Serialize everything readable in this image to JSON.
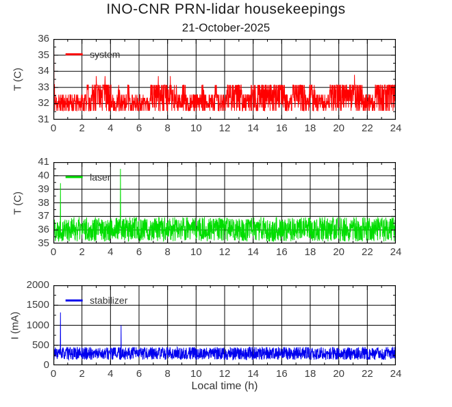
{
  "title": "INO-CNR PRN-lidar housekeepings",
  "subtitle": "21-October-2025",
  "xlabel": "Local time (h)",
  "chart_data": [
    {
      "type": "line",
      "series_name": "system",
      "legend_label": "system",
      "color": "#ff0000",
      "ylabel": "T (C)",
      "ylim": [
        31,
        36
      ],
      "yticks": [
        31,
        32,
        33,
        34,
        35,
        36
      ],
      "ytick_minor": 0.5,
      "xlim": [
        0,
        24
      ],
      "xticks": [
        0,
        2,
        4,
        6,
        8,
        10,
        12,
        14,
        16,
        18,
        20,
        22,
        24
      ],
      "xtick_minor": 1,
      "grid": true,
      "noise_band": [
        31.55,
        32.55
      ],
      "quantized_levels": 6,
      "burst_top": 33.15,
      "burst_windows": [
        [
          2.35,
          2.5
        ],
        [
          2.7,
          4.05
        ],
        [
          4.5,
          4.65
        ],
        [
          5.2,
          5.3
        ],
        [
          6.8,
          8.65
        ],
        [
          9.05,
          9.25
        ],
        [
          10.4,
          10.55
        ],
        [
          11.3,
          11.45
        ],
        [
          12.15,
          13.2
        ],
        [
          13.85,
          16.2
        ],
        [
          16.75,
          17.65
        ],
        [
          17.95,
          18.35
        ],
        [
          19.35,
          21.7
        ],
        [
          22.55,
          24.0
        ]
      ],
      "spikes": [
        [
          0.03,
          35.25
        ],
        [
          0.07,
          33.2
        ],
        [
          3.0,
          33.7
        ],
        [
          3.62,
          33.7
        ],
        [
          7.35,
          33.7
        ],
        [
          8.2,
          33.7
        ],
        [
          21.1,
          33.78
        ]
      ],
      "legend": {
        "line_x": [
          0.85,
          2.05
        ],
        "line_y": 35.05,
        "text_x": 2.55
      },
      "seed": 11,
      "points": 1600
    },
    {
      "type": "line",
      "series_name": "laser",
      "legend_label": "laser",
      "color": "#00dd00",
      "ylabel": "T (C)",
      "ylim": [
        35,
        41
      ],
      "yticks": [
        35,
        36,
        37,
        38,
        39,
        40,
        41
      ],
      "ytick_minor": 0.5,
      "xlim": [
        0,
        24
      ],
      "xticks": [
        0,
        2,
        4,
        6,
        8,
        10,
        12,
        14,
        16,
        18,
        20,
        22,
        24
      ],
      "xtick_minor": 1,
      "grid": true,
      "noise_band": [
        35.15,
        36.95
      ],
      "quantized_levels": 0,
      "burst_top": null,
      "burst_windows": [],
      "spikes": [
        [
          0.5,
          39.45
        ],
        [
          4.7,
          40.5
        ]
      ],
      "legend": {
        "line_x": [
          0.85,
          2.05
        ],
        "line_y": 39.9,
        "text_x": 2.55
      },
      "seed": 22,
      "points": 1600
    },
    {
      "type": "line",
      "series_name": "stabilizer",
      "legend_label": "stabilizer",
      "color": "#0000ee",
      "ylabel": "I (mA)",
      "ylim": [
        0,
        2000
      ],
      "yticks": [
        0,
        500,
        1000,
        1500,
        2000
      ],
      "ytick_minor": 250,
      "xlim": [
        0,
        24
      ],
      "xticks": [
        0,
        2,
        4,
        6,
        8,
        10,
        12,
        14,
        16,
        18,
        20,
        22,
        24
      ],
      "xtick_minor": 1,
      "grid": true,
      "noise_band": [
        135,
        455
      ],
      "quantized_levels": 0,
      "burst_top": null,
      "burst_windows": [],
      "spikes": [
        [
          0.5,
          1320
        ],
        [
          4.75,
          1000
        ]
      ],
      "legend": {
        "line_x": [
          0.85,
          2.05
        ],
        "line_y": 1620,
        "text_x": 2.55
      },
      "seed": 33,
      "points": 1600
    }
  ]
}
